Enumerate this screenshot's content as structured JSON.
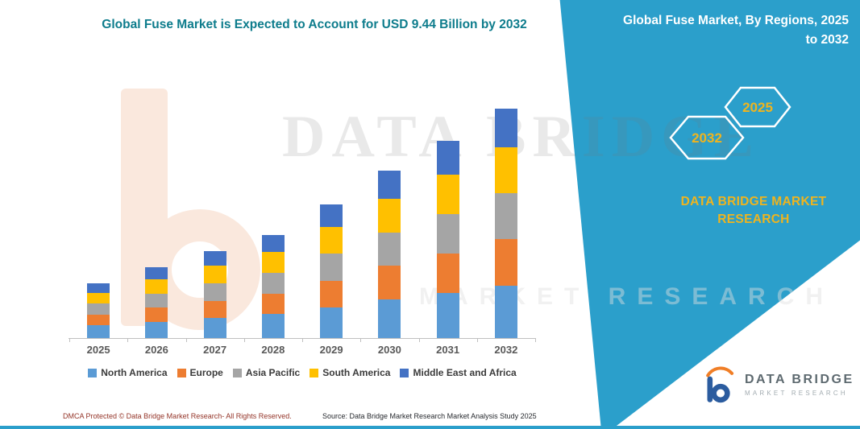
{
  "title": "Global Fuse Market is Expected to Account for USD 9.44 Billion by 2032",
  "banner": {
    "title_line1": "Global Fuse Market, By Regions, 2025",
    "title_line2": "to 2032",
    "hexagons": [
      "2032",
      "2025"
    ],
    "brand_text": "DATA BRIDGE MARKET RESEARCH",
    "color": "#2B9FCB",
    "accent_text_color": "#EFB41E"
  },
  "watermark": {
    "line1": "DATA BRIDGE",
    "line2": "MARKET RESEARCH"
  },
  "chart_data": {
    "type": "bar",
    "stacked": true,
    "title": "Global Fuse Market is Expected to Account for USD 9.44 Billion by 2032",
    "unit_hint": "USD Billion (values estimated from bar heights; 2032 total labeled 9.44)",
    "categories": [
      "2025",
      "2026",
      "2027",
      "2028",
      "2029",
      "2030",
      "2031",
      "2032"
    ],
    "series": [
      {
        "name": "North America",
        "color": "#5B9BD5",
        "values": [
          0.52,
          0.67,
          0.82,
          0.98,
          1.27,
          1.59,
          1.87,
          2.17
        ]
      },
      {
        "name": "Europe",
        "color": "#ED7D31",
        "values": [
          0.45,
          0.58,
          0.72,
          0.85,
          1.1,
          1.38,
          1.62,
          1.89
        ]
      },
      {
        "name": "Asia Pacific",
        "color": "#A5A5A5",
        "values": [
          0.45,
          0.58,
          0.72,
          0.85,
          1.1,
          1.38,
          1.62,
          1.89
        ]
      },
      {
        "name": "South America",
        "color": "#FFC000",
        "values": [
          0.45,
          0.58,
          0.72,
          0.85,
          1.1,
          1.38,
          1.62,
          1.89
        ]
      },
      {
        "name": "Middle East and Africa",
        "color": "#4472C4",
        "values": [
          0.38,
          0.5,
          0.6,
          0.71,
          0.93,
          1.16,
          1.38,
          1.6
        ]
      }
    ],
    "ylim": [
      0,
      9.6
    ],
    "grid": false,
    "legend_position": "bottom",
    "y_axis_labels_visible": false
  },
  "footer": {
    "dmca": "DMCA Protected © Data Bridge Market Research- All Rights Reserved.",
    "source": "Source: Data Bridge Market Research Market Analysis Study 2025"
  },
  "logo": {
    "name": "DATA BRIDGE",
    "subtitle": "MARKET RESEARCH"
  },
  "colors": {
    "title_text": "#0D7C8C",
    "banner": "#2B9FCB",
    "gold_text": "#EFB41E",
    "footer_dmca_text": "#943428",
    "bottom_strip": "#2B9FCB"
  }
}
